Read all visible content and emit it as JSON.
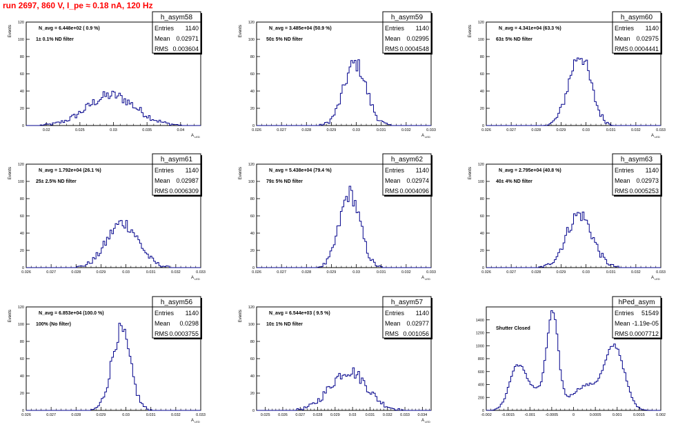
{
  "title": "run 2697,   860 V, I_pe ≈ 0.18 nA, 120 Hz",
  "chart_data": [
    {
      "type": "bar",
      "id": "p1",
      "title": "h_asym58",
      "ylabel": "Events",
      "xlabel": "A_LED",
      "navg": "N_avg = 6.448e+02 ( 0.9 %)",
      "filter": "1± 0.1% ND filter",
      "stats": {
        "entries": "1140",
        "mean": "0.02971",
        "rms": "0.003604"
      },
      "xlim": [
        0.017,
        0.043
      ],
      "ylim": [
        0,
        120
      ],
      "xticks": [
        0.02,
        0.025,
        0.03,
        0.035,
        0.04
      ],
      "xtick_labels": [
        "0.02",
        "0.025",
        "0.03",
        "0.035",
        "0.04"
      ],
      "yticks": [
        0,
        20,
        40,
        60,
        80,
        100,
        120
      ],
      "ytick_labels": [
        "0",
        "20",
        "40",
        "60",
        "80",
        "100",
        "120"
      ],
      "peak": {
        "center": 0.0297,
        "sigma": 0.0036,
        "height": 35,
        "area_frac": 0
      }
    },
    {
      "type": "bar",
      "id": "p2",
      "title": "h_asym59",
      "ylabel": "Events",
      "xlabel": "A_LED",
      "navg": "N_avg = 3.485e+04 (50.9 %)",
      "filter": "50± 5% ND filter",
      "stats": {
        "entries": "1140",
        "mean": "0.02995",
        "rms": "0.0004548"
      },
      "xlim": [
        0.026,
        0.033
      ],
      "ylim": [
        0,
        120
      ],
      "xticks": [
        0.026,
        0.027,
        0.028,
        0.029,
        0.03,
        0.031,
        0.032,
        0.033
      ],
      "xtick_labels": [
        "0.026",
        "0.027",
        "0.028",
        "0.029",
        "0.03",
        "0.031",
        "0.032",
        "0.033"
      ],
      "yticks": [
        0,
        20,
        40,
        60,
        80,
        100,
        120
      ],
      "ytick_labels": [
        "0",
        "20",
        "40",
        "60",
        "80",
        "100",
        "120"
      ],
      "peak": {
        "center": 0.02995,
        "sigma": 0.00045,
        "height": 72
      }
    },
    {
      "type": "bar",
      "id": "p3",
      "title": "h_asym60",
      "ylabel": "Events",
      "xlabel": "A_LED",
      "navg": "N_avg = 4.341e+04 (63.3 %)",
      "filter": "63± 5% ND filter",
      "stats": {
        "entries": "1140",
        "mean": "0.02975",
        "rms": "0.0004441"
      },
      "xlim": [
        0.026,
        0.033
      ],
      "ylim": [
        0,
        120
      ],
      "xticks": [
        0.026,
        0.027,
        0.028,
        0.029,
        0.03,
        0.031,
        0.032,
        0.033
      ],
      "xtick_labels": [
        "0.026",
        "0.027",
        "0.028",
        "0.029",
        "0.03",
        "0.031",
        "0.032",
        "0.033"
      ],
      "yticks": [
        0,
        20,
        40,
        60,
        80,
        100,
        120
      ],
      "ytick_labels": [
        "0",
        "20",
        "40",
        "60",
        "80",
        "100",
        "120"
      ],
      "peak": {
        "center": 0.02975,
        "sigma": 0.00044,
        "height": 82
      }
    },
    {
      "type": "bar",
      "id": "p4",
      "title": "h_asym61",
      "ylabel": "Events",
      "xlabel": "A_LED",
      "navg": "N_avg = 1.792e+04 (26.1 %)",
      "filter": "25± 2.5% ND filter",
      "stats": {
        "entries": "1140",
        "mean": "0.02987",
        "rms": "0.0006309"
      },
      "xlim": [
        0.026,
        0.033
      ],
      "ylim": [
        0,
        120
      ],
      "xticks": [
        0.026,
        0.027,
        0.028,
        0.029,
        0.03,
        0.031,
        0.032,
        0.033
      ],
      "xtick_labels": [
        "0.026",
        "0.027",
        "0.028",
        "0.029",
        "0.03",
        "0.031",
        "0.032",
        "0.033"
      ],
      "yticks": [
        0,
        20,
        40,
        60,
        80,
        100,
        120
      ],
      "ytick_labels": [
        "0",
        "20",
        "40",
        "60",
        "80",
        "100",
        "120"
      ],
      "peak": {
        "center": 0.02987,
        "sigma": 0.00063,
        "height": 52
      }
    },
    {
      "type": "bar",
      "id": "p5",
      "title": "h_asym62",
      "ylabel": "Events",
      "xlabel": "A_LED",
      "navg": "N_avg = 5.438e+04 (79.4 %)",
      "filter": "79± 5% ND filter",
      "stats": {
        "entries": "1140",
        "mean": "0.02974",
        "rms": "0.0004096"
      },
      "xlim": [
        0.026,
        0.033
      ],
      "ylim": [
        0,
        120
      ],
      "xticks": [
        0.026,
        0.027,
        0.028,
        0.029,
        0.03,
        0.031,
        0.032,
        0.033
      ],
      "xtick_labels": [
        "0.026",
        "0.027",
        "0.028",
        "0.029",
        "0.03",
        "0.031",
        "0.032",
        "0.033"
      ],
      "yticks": [
        0,
        20,
        40,
        60,
        80,
        100,
        120
      ],
      "ytick_labels": [
        "0",
        "20",
        "40",
        "60",
        "80",
        "100",
        "120"
      ],
      "peak": {
        "center": 0.02974,
        "sigma": 0.00041,
        "height": 86
      }
    },
    {
      "type": "bar",
      "id": "p6",
      "title": "h_asym63",
      "ylabel": "Events",
      "xlabel": "A_LED",
      "navg": "N_avg = 2.795e+04 (40.8 %)",
      "filter": "40± 4% ND filter",
      "stats": {
        "entries": "1140",
        "mean": "0.02973",
        "rms": "0.0005253"
      },
      "xlim": [
        0.026,
        0.033
      ],
      "ylim": [
        0,
        120
      ],
      "xticks": [
        0.026,
        0.027,
        0.028,
        0.029,
        0.03,
        0.031,
        0.032,
        0.033
      ],
      "xtick_labels": [
        "0.026",
        "0.027",
        "0.028",
        "0.029",
        "0.03",
        "0.031",
        "0.032",
        "0.033"
      ],
      "yticks": [
        0,
        20,
        40,
        60,
        80,
        100,
        120
      ],
      "ytick_labels": [
        "0",
        "20",
        "40",
        "60",
        "80",
        "100",
        "120"
      ],
      "peak": {
        "center": 0.02973,
        "sigma": 0.00052,
        "height": 62
      }
    },
    {
      "type": "bar",
      "id": "p7",
      "title": "h_asym56",
      "ylabel": "Events",
      "xlabel": "A_LED",
      "navg": "N_avg = 6.853e+04 (100.0 %)",
      "filter": "100% (No filter)",
      "stats": {
        "entries": "1140",
        "mean": "0.0298",
        "rms": "0.0003755"
      },
      "xlim": [
        0.026,
        0.033
      ],
      "ylim": [
        0,
        120
      ],
      "xticks": [
        0.026,
        0.027,
        0.028,
        0.029,
        0.03,
        0.031,
        0.032,
        0.033
      ],
      "xtick_labels": [
        "0.026",
        "0.027",
        "0.028",
        "0.029",
        "0.03",
        "0.031",
        "0.032",
        "0.033"
      ],
      "yticks": [
        0,
        20,
        40,
        60,
        80,
        100,
        120
      ],
      "ytick_labels": [
        "0",
        "20",
        "40",
        "60",
        "80",
        "100",
        "120"
      ],
      "peak": {
        "center": 0.0298,
        "sigma": 0.000375,
        "height": 92
      }
    },
    {
      "type": "bar",
      "id": "p8",
      "title": "h_asym57",
      "ylabel": "Events",
      "xlabel": "A_LED",
      "navg": "N_avg = 6.544e+03 ( 9.5 %)",
      "filter": "10± 1% ND filter",
      "stats": {
        "entries": "1140",
        "mean": "0.02977",
        "rms": "0.001056"
      },
      "xlim": [
        0.0245,
        0.0345
      ],
      "ylim": [
        0,
        120
      ],
      "xticks": [
        0.025,
        0.026,
        0.027,
        0.028,
        0.029,
        0.03,
        0.031,
        0.032,
        0.033,
        0.034
      ],
      "xtick_labels": [
        "0.025",
        "0.026",
        "0.027",
        "0.028",
        "0.029",
        "0.03",
        "0.031",
        "0.032",
        "0.033",
        "0.034"
      ],
      "yticks": [
        0,
        20,
        40,
        60,
        80,
        100,
        120
      ],
      "ytick_labels": [
        "0",
        "20",
        "40",
        "60",
        "80",
        "100",
        "120"
      ],
      "peak": {
        "center": 0.02977,
        "sigma": 0.00105,
        "height": 46
      }
    },
    {
      "type": "bar",
      "id": "p9",
      "title": "hPed_asym",
      "ylabel": "",
      "xlabel": "",
      "navg": "",
      "filter": "Shutter Closed",
      "stats": {
        "entries": "51549",
        "mean": "-1.19e-05",
        "rms": "0.0007712"
      },
      "xlim": [
        -0.002,
        0.002
      ],
      "ylim": [
        0,
        1600
      ],
      "xticks": [
        -0.002,
        -0.0015,
        -0.001,
        -0.0005,
        0,
        0.0005,
        0.001,
        0.0015,
        0.002
      ],
      "xtick_labels": [
        "-0.002",
        "-0.0015",
        "-0.001",
        "-0.0005",
        "0",
        "0.0005",
        "0.001",
        "0.0015",
        "0.002"
      ],
      "yticks": [
        0,
        200,
        400,
        600,
        800,
        1000,
        1200,
        1400
      ],
      "ytick_labels": [
        "0",
        "200",
        "400",
        "600",
        "800",
        "1000",
        "1200",
        "1400"
      ],
      "bimodal": [
        {
          "center": -0.0013,
          "sigma": 0.00018,
          "height": 620
        },
        {
          "center": -0.00048,
          "sigma": 0.00013,
          "height": 1420
        },
        {
          "center": 0.00095,
          "sigma": 0.00022,
          "height": 940
        },
        {
          "center": -0.0009,
          "sigma": 0.00025,
          "height": 300
        },
        {
          "center": 0.0003,
          "sigma": 0.00035,
          "height": 380
        }
      ]
    }
  ],
  "labels": {
    "entries": "Entries",
    "mean": "Mean",
    "rms": "RMS"
  }
}
